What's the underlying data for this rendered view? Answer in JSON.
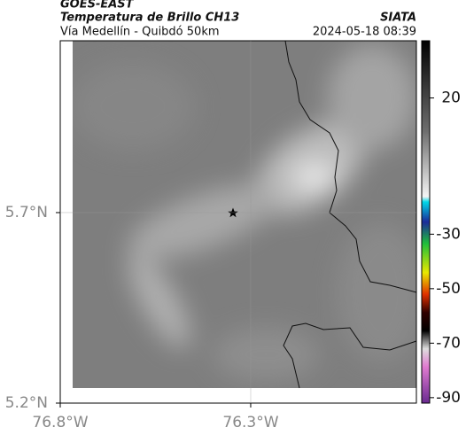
{
  "header": {
    "source": "GOES-EAST",
    "product": "Temperatura de Brillo CH13",
    "org": "SIATA",
    "region": "Vía Medellín - Quibdó 50km",
    "datetime": "2024-05-18 08:39"
  },
  "map": {
    "xlim": [
      -76.8,
      -75.865
    ],
    "ylim": [
      5.2,
      6.151
    ],
    "xticks": [
      {
        "value": -76.8,
        "label": "76.8°W"
      },
      {
        "value": -76.3,
        "label": "76.3°W"
      }
    ],
    "yticks": [
      {
        "value": 5.2,
        "label": "5.2°N"
      },
      {
        "value": 5.7,
        "label": "5.7°N"
      }
    ]
  },
  "colorbar": {
    "clim": [
      -92,
      41
    ],
    "ticks": [
      20,
      -30,
      -50,
      -70,
      -90
    ]
  }
}
